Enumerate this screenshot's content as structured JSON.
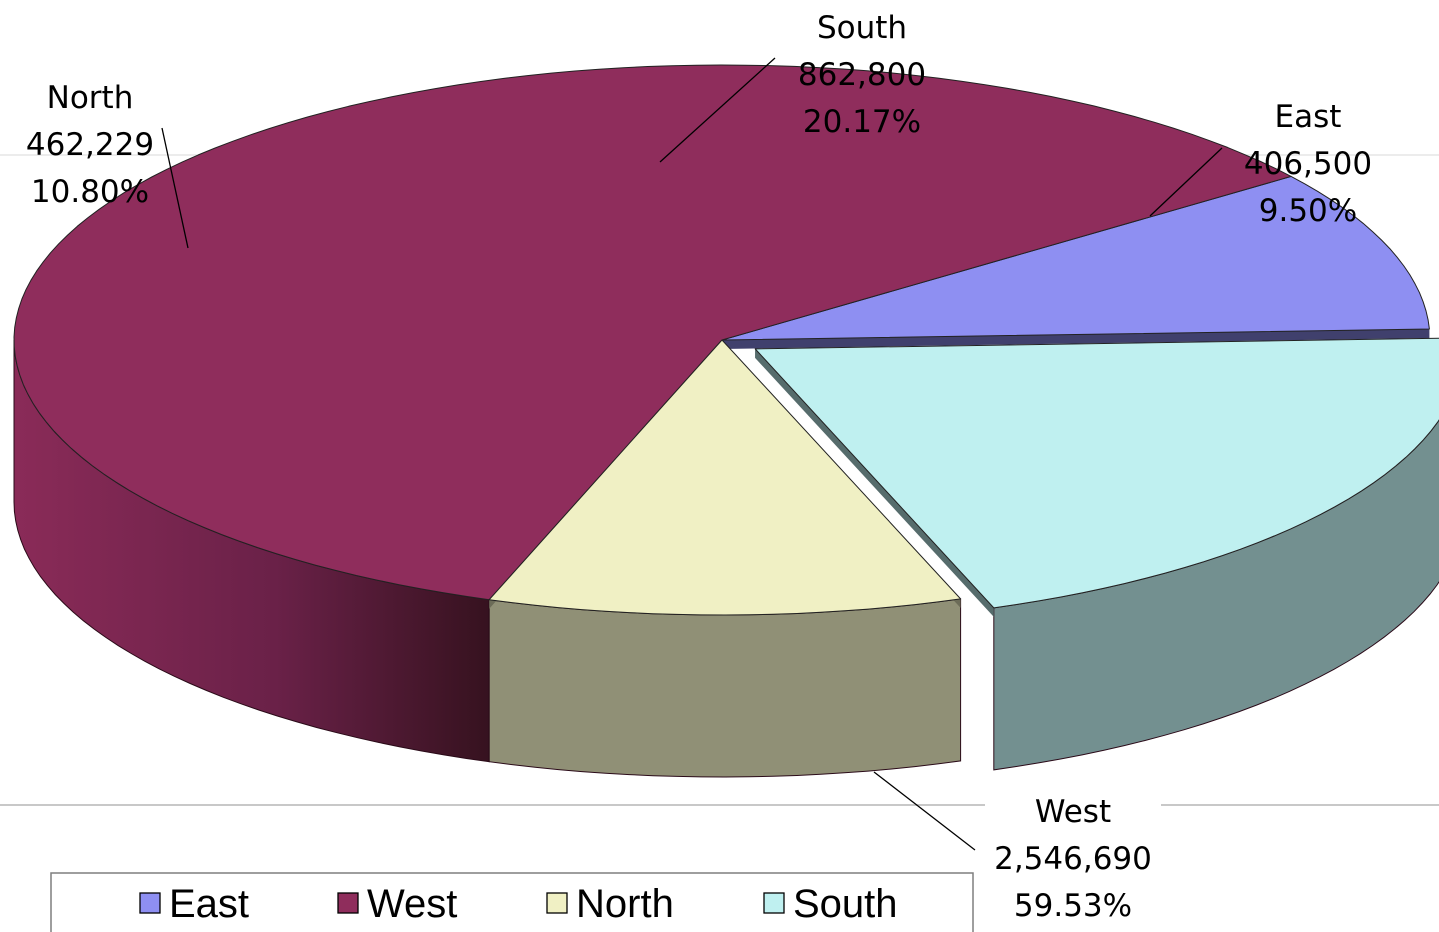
{
  "chart_data": {
    "type": "pie",
    "style": "3d-exploded",
    "categories": [
      "East",
      "West",
      "North",
      "South"
    ],
    "values": [
      406500,
      2546690,
      462229,
      862800
    ],
    "value_labels": [
      "406,500",
      "2,546,690",
      "462,229",
      "862,800"
    ],
    "percent_labels": [
      "9.50%",
      "59.53%",
      "10.80%",
      "20.17%"
    ],
    "colors": [
      "#8e8ff2",
      "#8f2d5c",
      "#f0f0c4",
      "#bff0f0"
    ],
    "exploded": [
      "South"
    ],
    "legend": {
      "position": "bottom"
    },
    "title": ""
  }
}
